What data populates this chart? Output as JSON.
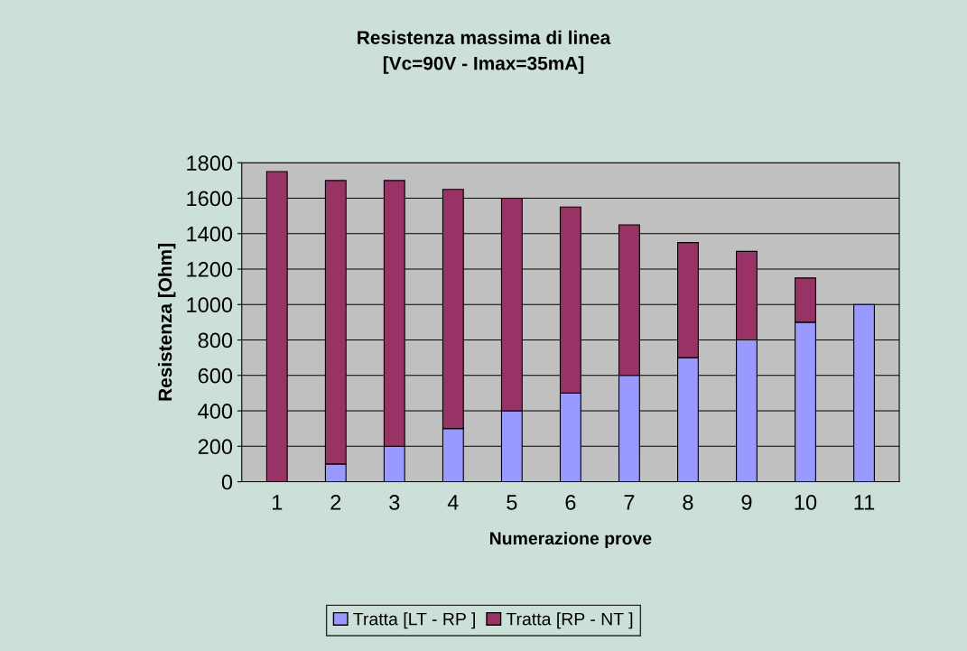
{
  "chart_data": {
    "type": "bar",
    "title": "Resistenza massima di linea\n[Vc=90V - Imax=35mA]",
    "xlabel": "Numerazione prove",
    "ylabel": "Resistenza [Ohm]",
    "categories": [
      "1",
      "2",
      "3",
      "4",
      "5",
      "6",
      "7",
      "8",
      "9",
      "10",
      "11"
    ],
    "stacked": true,
    "series": [
      {
        "name": "Tratta [LT - RP ]",
        "color": "#9999ff",
        "values": [
          0,
          100,
          200,
          300,
          400,
          500,
          600,
          700,
          800,
          900,
          1000
        ]
      },
      {
        "name": "Tratta [RP - NT ]",
        "color": "#993366",
        "values": [
          1750,
          1600,
          1500,
          1350,
          1200,
          1050,
          850,
          650,
          500,
          250,
          0
        ]
      }
    ],
    "ylim": [
      0,
      1800
    ],
    "yticks": [
      0,
      200,
      400,
      600,
      800,
      1000,
      1200,
      1400,
      1600,
      1800
    ],
    "grid": "y",
    "legend": "bottom"
  }
}
